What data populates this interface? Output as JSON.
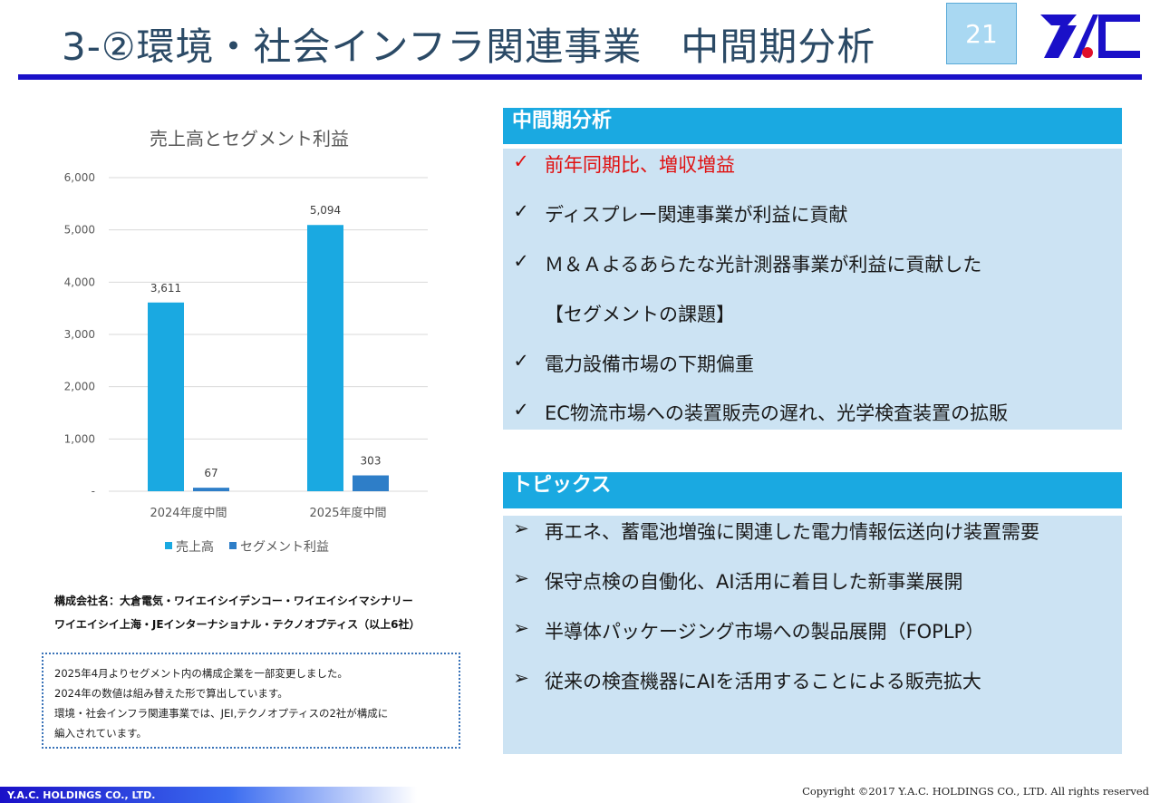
{
  "header": {
    "title": "3-②環境・社会インフラ関連事業　中間期分析",
    "page_number": "21"
  },
  "logo": {
    "brand_color": "#1a10c8",
    "dot_color": "#e0102a",
    "icon": "yac-logo"
  },
  "chart_data": {
    "type": "bar",
    "title": "売上高とセグメント利益",
    "categories": [
      "2024年度中間",
      "2025年度中間"
    ],
    "series": [
      {
        "name": "売上高",
        "values": [
          3611,
          5094
        ],
        "color": "#1aa9e1"
      },
      {
        "name": "セグメント利益",
        "values": [
          67,
          303
        ],
        "color": "#2e7ec8"
      }
    ],
    "data_labels": [
      [
        "3,611",
        "5,094"
      ],
      [
        "67",
        "303"
      ]
    ],
    "y_ticks": [
      "-",
      "1,000",
      "2,000",
      "3,000",
      "4,000",
      "5,000",
      "6,000"
    ],
    "ylim": [
      0,
      6000
    ],
    "grid": true,
    "legend": "bottom"
  },
  "companies": {
    "line1": "構成会社名：大倉電気・ワイエイシイデンコー・ワイエイシイマシナリー",
    "line2": "ワイエイシイ上海・JEインターナショナル・テクノオプティス（以上6社）"
  },
  "note": {
    "line1": "2025年4月よりセグメント内の構成企業を一部変更しました。",
    "line2": "2024年の数値は組み替えた形で算出しています。",
    "line3": "環境・社会インフラ関連事業では、JEI,テクノオプティスの2社が構成に",
    "line4": "編入されています。"
  },
  "analysis": {
    "heading": "中間期分析",
    "items": [
      {
        "marker": "✓",
        "text": "前年同期比、増収増益",
        "color": "#e01010"
      },
      {
        "marker": "✓",
        "text": "ディスプレー関連事業が利益に貢献"
      },
      {
        "marker": "✓",
        "text": "Ｍ＆Ａよるあらたな光計測器事業が利益に貢献した"
      },
      {
        "marker": "",
        "text": "【セグメントの課題】"
      },
      {
        "marker": "✓",
        "text": "電力設備市場の下期偏重"
      },
      {
        "marker": "✓",
        "text": "EC物流市場への装置販売の遅れ、光学検査装置の拡販"
      }
    ]
  },
  "topics": {
    "heading": "トピックス",
    "items": [
      {
        "marker": "➢",
        "text": "再エネ、蓄電池増強に関連した電力情報伝送向け装置需要"
      },
      {
        "marker": "➢",
        "text": "保守点検の自働化、AI活用に着目した新事業展開"
      },
      {
        "marker": "➢",
        "text": "半導体パッケージング市場への製品展開（FOPLP）"
      },
      {
        "marker": "➢",
        "text": "従来の検査機器にAIを活用することによる販売拡大"
      }
    ]
  },
  "footer": {
    "company": "Y.A.C. HOLDINGS CO., LTD.",
    "copyright": "Copyright ©2017 Y.A.C. HOLDINGS CO., LTD.  All rights reserved"
  }
}
